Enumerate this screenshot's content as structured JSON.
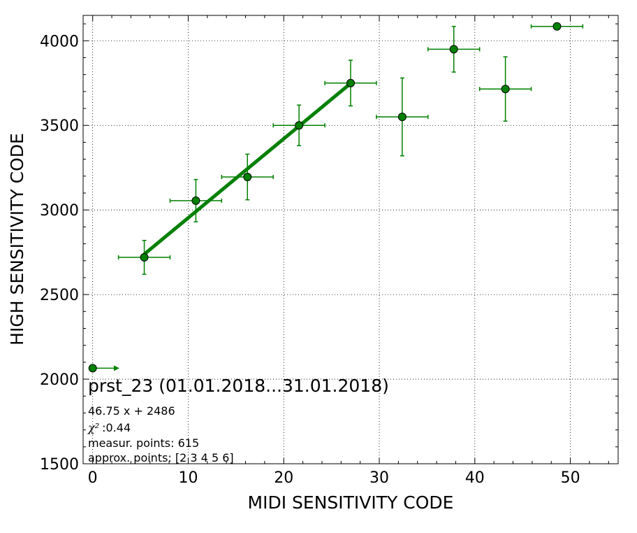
{
  "chart_data": {
    "type": "scatter",
    "title": "",
    "xlabel": "MIDI SENSITIVITY CODE",
    "ylabel": "HIGH SENSITIVITY CODE",
    "xlim": [
      -1,
      55
    ],
    "ylim": [
      1500,
      4150
    ],
    "xticks": [
      0,
      10,
      20,
      30,
      40,
      50
    ],
    "yticks": [
      1500,
      2000,
      2500,
      3000,
      3500,
      4000
    ],
    "grid": true,
    "color": "#008000",
    "points": [
      {
        "x": 0.0,
        "y": 2065,
        "xerr": 0.0,
        "yerr": 0
      },
      {
        "x": 5.4,
        "y": 2720,
        "xerr": 2.7,
        "yerr": 100
      },
      {
        "x": 10.8,
        "y": 3055,
        "xerr": 2.7,
        "yerr": 125
      },
      {
        "x": 16.2,
        "y": 3195,
        "xerr": 2.7,
        "yerr": 135
      },
      {
        "x": 21.6,
        "y": 3500,
        "xerr": 2.7,
        "yerr": 120
      },
      {
        "x": 27.0,
        "y": 3750,
        "xerr": 2.7,
        "yerr": 135
      },
      {
        "x": 32.4,
        "y": 3550,
        "xerr": 2.7,
        "yerr": 230
      },
      {
        "x": 37.8,
        "y": 3950,
        "xerr": 2.7,
        "yerr": 135
      },
      {
        "x": 43.2,
        "y": 3715,
        "xerr": 2.7,
        "yerr": 190
      },
      {
        "x": 48.6,
        "y": 4085,
        "xerr": 2.7,
        "yerr": 0
      }
    ],
    "limit_arrow": {
      "x_from": 0.0,
      "x_to": 2.8,
      "y": 2065
    },
    "fit_line": {
      "slope": 46.75,
      "intercept": 2486,
      "x_from": 5.4,
      "x_to": 27.0
    },
    "annotations": {
      "title": "prst_23 (01.01.2018...31.01.2018)",
      "equation": "46.75 x + 2486",
      "chi2_label": "χ²",
      "chi2_value": ":0.44",
      "measur_points": "measur. points: 615",
      "approx_points": "approx. points: [2 3 4 5 6]"
    }
  }
}
